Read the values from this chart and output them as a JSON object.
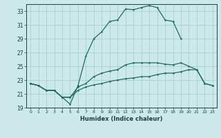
{
  "xlabel": "Humidex (Indice chaleur)",
  "background_color": "#cce8e8",
  "line_color": "#1e6b5e",
  "grid_color": "#99cccc",
  "xlim": [
    -0.5,
    23.5
  ],
  "ylim": [
    19,
    34
  ],
  "xticks": [
    0,
    1,
    2,
    3,
    4,
    5,
    6,
    7,
    8,
    9,
    10,
    11,
    12,
    13,
    14,
    15,
    16,
    17,
    18,
    19,
    20,
    21,
    22,
    23
  ],
  "yticks": [
    19,
    21,
    23,
    25,
    27,
    29,
    31,
    33
  ],
  "line1_x": [
    0,
    1,
    2,
    3,
    4,
    5,
    6,
    7,
    8,
    9,
    10,
    11,
    12,
    13,
    14,
    15,
    16,
    17,
    18,
    19
  ],
  "line1_y": [
    22.5,
    22.2,
    21.5,
    21.5,
    20.5,
    19.5,
    22.2,
    26.5,
    29.0,
    30.0,
    31.5,
    31.7,
    33.3,
    33.2,
    33.5,
    33.8,
    33.5,
    31.7,
    31.5,
    29.0
  ],
  "line2_x": [
    0,
    1,
    2,
    3,
    4,
    5,
    6,
    7,
    8,
    9,
    10,
    11,
    12,
    13,
    14,
    15,
    16,
    17,
    18,
    19,
    20,
    21,
    22,
    23
  ],
  "line2_y": [
    22.5,
    22.2,
    21.5,
    21.5,
    20.5,
    20.5,
    22.0,
    22.5,
    23.5,
    24.0,
    24.3,
    24.5,
    25.2,
    25.5,
    25.5,
    25.5,
    25.5,
    25.3,
    25.2,
    25.5,
    25.0,
    24.5,
    22.5,
    22.2
  ],
  "line3_x": [
    0,
    1,
    2,
    3,
    4,
    5,
    6,
    7,
    8,
    9,
    10,
    11,
    12,
    13,
    14,
    15,
    16,
    17,
    18,
    19,
    20,
    21,
    22,
    23
  ],
  "line3_y": [
    22.5,
    22.2,
    21.5,
    21.5,
    20.5,
    20.5,
    21.5,
    22.0,
    22.3,
    22.5,
    22.8,
    23.0,
    23.2,
    23.3,
    23.5,
    23.5,
    23.8,
    24.0,
    24.0,
    24.2,
    24.5,
    24.5,
    22.5,
    22.2
  ]
}
